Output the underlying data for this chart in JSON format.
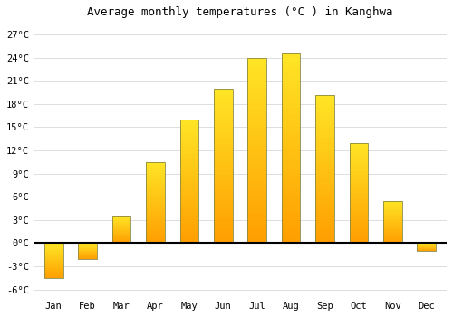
{
  "title": "Average monthly temperatures (°C ) in Kanghwa",
  "months": [
    "Jan",
    "Feb",
    "Mar",
    "Apr",
    "May",
    "Jun",
    "Jul",
    "Aug",
    "Sep",
    "Oct",
    "Nov",
    "Dec"
  ],
  "values": [
    -4.5,
    -2.0,
    3.5,
    10.5,
    16.0,
    20.0,
    24.0,
    24.5,
    19.2,
    13.0,
    5.5,
    -1.0
  ],
  "bar_color_top": "#FFD040",
  "bar_color_bottom": "#FFA000",
  "bar_edge_color": "#888844",
  "background_color": "#ffffff",
  "grid_color": "#dddddd",
  "yticks": [
    -6,
    -3,
    0,
    3,
    6,
    9,
    12,
    15,
    18,
    21,
    24,
    27
  ],
  "ylim": [
    -7,
    28.5
  ],
  "title_fontsize": 9,
  "tick_fontsize": 7.5,
  "zero_line_color": "#000000",
  "bar_width": 0.55
}
